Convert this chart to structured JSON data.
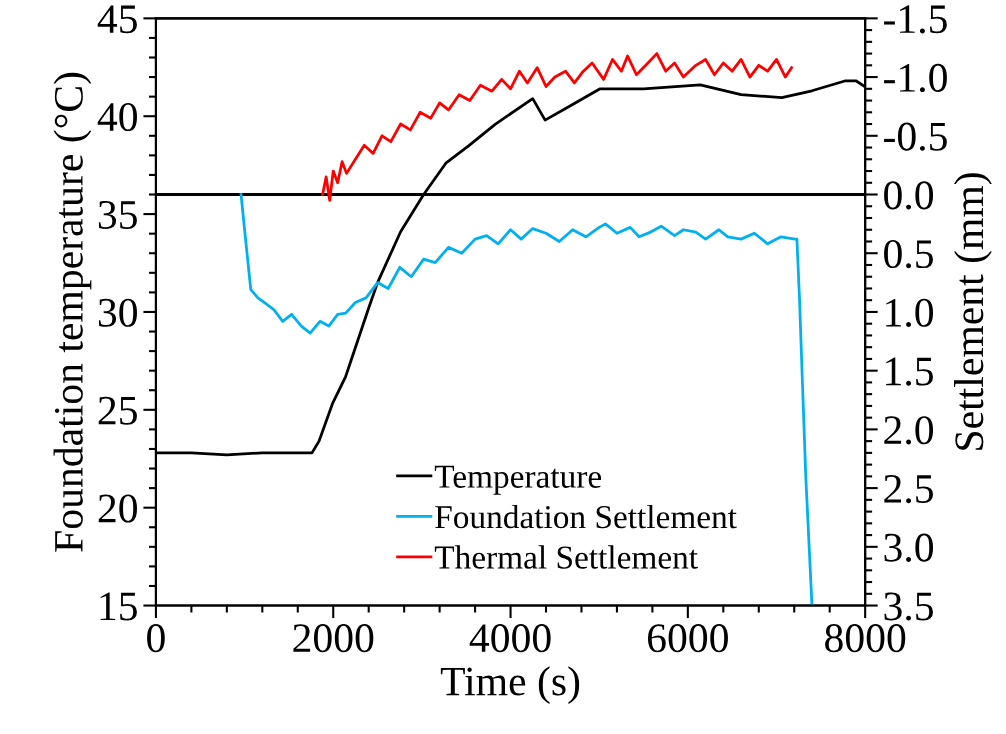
{
  "chart_data": {
    "type": "line",
    "xlabel": "Time (s)",
    "ylabel": "Foundation temperature (°C)",
    "y2label": "Settlement (mm)",
    "xlim": [
      0,
      8000
    ],
    "xticks": [
      0,
      2000,
      4000,
      6000,
      8000
    ],
    "ylim": [
      15,
      45
    ],
    "yticks": [
      15,
      20,
      25,
      30,
      35,
      40,
      45
    ],
    "y2lim": [
      3.5,
      -1.5
    ],
    "y2ticks": [
      {
        "value": 3.5,
        "label": "3.5"
      },
      {
        "value": 3,
        "label": "3.0"
      },
      {
        "value": 2.5,
        "label": "2.5"
      },
      {
        "value": 2,
        "label": "2.0"
      },
      {
        "value": 1.5,
        "label": "1.5"
      },
      {
        "value": 1,
        "label": "1.0"
      },
      {
        "value": 0.5,
        "label": "0.5"
      },
      {
        "value": 0,
        "label": "0.0"
      },
      {
        "value": -0.5,
        "label": "-0.5"
      },
      {
        "value": -1,
        "label": "-1.0"
      },
      {
        "value": -1.5,
        "label": "-1.5"
      }
    ],
    "grid": false,
    "legend": "bottom",
    "marker": "none",
    "line_style": "solid",
    "ref_lines": [
      {
        "axis": "y2",
        "value": 0,
        "color": "#000000"
      }
    ],
    "series": [
      {
        "name": "Temperature",
        "color": "#000000",
        "x": [
          0,
          400,
          800,
          1200,
          1600,
          1760,
          1840,
          1990,
          2140,
          2400,
          2500,
          2760,
          3020,
          3270,
          3530,
          3830,
          4250,
          4390,
          4700,
          5010,
          5500,
          6140,
          6600,
          7060,
          7400,
          7770,
          7900,
          8000
        ],
        "values": [
          22.8,
          22.8,
          22.7,
          22.8,
          22.8,
          22.8,
          23.4,
          25.3,
          26.7,
          30.2,
          31.5,
          34.1,
          36.0,
          37.6,
          38.5,
          39.6,
          40.9,
          39.8,
          40.6,
          41.4,
          41.4,
          41.6,
          41.1,
          40.95,
          41.3,
          41.8,
          41.8,
          41.5
        ]
      },
      {
        "name": "Foundation Settlement",
        "color": "#00b0f0",
        "axis": "y2",
        "x": [
          960,
          1000,
          1070,
          1150,
          1240,
          1330,
          1430,
          1530,
          1640,
          1740,
          1850,
          1950,
          2050,
          2140,
          2250,
          2370,
          2500,
          2620,
          2750,
          2880,
          3020,
          3150,
          3300,
          3450,
          3600,
          3730,
          3860,
          4000,
          4120,
          4250,
          4400,
          4550,
          4700,
          4850,
          5000,
          5070,
          5200,
          5350,
          5450,
          5580,
          5700,
          5850,
          5950,
          6090,
          6200,
          6350,
          6450,
          6600,
          6750,
          6900,
          7050,
          7210,
          7230,
          7260,
          7290,
          7330,
          7400
        ],
        "values": [
          0.0,
          0.3,
          0.81,
          0.88,
          0.93,
          0.98,
          1.08,
          1.02,
          1.12,
          1.18,
          1.08,
          1.12,
          1.02,
          1.01,
          0.92,
          0.88,
          0.75,
          0.8,
          0.62,
          0.7,
          0.55,
          0.58,
          0.45,
          0.5,
          0.38,
          0.35,
          0.42,
          0.3,
          0.38,
          0.29,
          0.33,
          0.4,
          0.3,
          0.36,
          0.28,
          0.25,
          0.33,
          0.28,
          0.36,
          0.32,
          0.27,
          0.35,
          0.3,
          0.32,
          0.38,
          0.3,
          0.36,
          0.38,
          0.33,
          0.42,
          0.36,
          0.38,
          0.38,
          0.9,
          1.55,
          2.4,
          3.5
        ]
      },
      {
        "name": "Thermal Settlement",
        "color": "#ff0000",
        "axis": "y2",
        "x": [
          1880,
          1920,
          1960,
          2000,
          2050,
          2100,
          2150,
          2250,
          2350,
          2450,
          2550,
          2650,
          2760,
          2870,
          2980,
          3100,
          3200,
          3300,
          3420,
          3540,
          3660,
          3790,
          3900,
          4000,
          4100,
          4190,
          4300,
          4400,
          4500,
          4620,
          4720,
          4810,
          4920,
          5050,
          5150,
          5250,
          5320,
          5420,
          5550,
          5650,
          5750,
          5850,
          5950,
          6090,
          6200,
          6300,
          6400,
          6500,
          6600,
          6700,
          6800,
          6900,
          7000,
          7100,
          7170
        ],
        "values": [
          0.0,
          -0.15,
          0.05,
          -0.2,
          -0.1,
          -0.28,
          -0.18,
          -0.3,
          -0.42,
          -0.35,
          -0.5,
          -0.45,
          -0.6,
          -0.55,
          -0.7,
          -0.65,
          -0.78,
          -0.72,
          -0.85,
          -0.8,
          -0.93,
          -0.88,
          -0.98,
          -0.9,
          -1.05,
          -0.95,
          -1.08,
          -0.92,
          -1.0,
          -1.05,
          -0.95,
          -1.04,
          -1.12,
          -0.98,
          -1.15,
          -1.05,
          -1.18,
          -1.02,
          -1.12,
          -1.2,
          -1.05,
          -1.12,
          -1.0,
          -1.1,
          -1.15,
          -1.02,
          -1.12,
          -1.05,
          -1.15,
          -1.0,
          -1.1,
          -1.05,
          -1.15,
          -1.0,
          -1.08
        ]
      }
    ]
  }
}
